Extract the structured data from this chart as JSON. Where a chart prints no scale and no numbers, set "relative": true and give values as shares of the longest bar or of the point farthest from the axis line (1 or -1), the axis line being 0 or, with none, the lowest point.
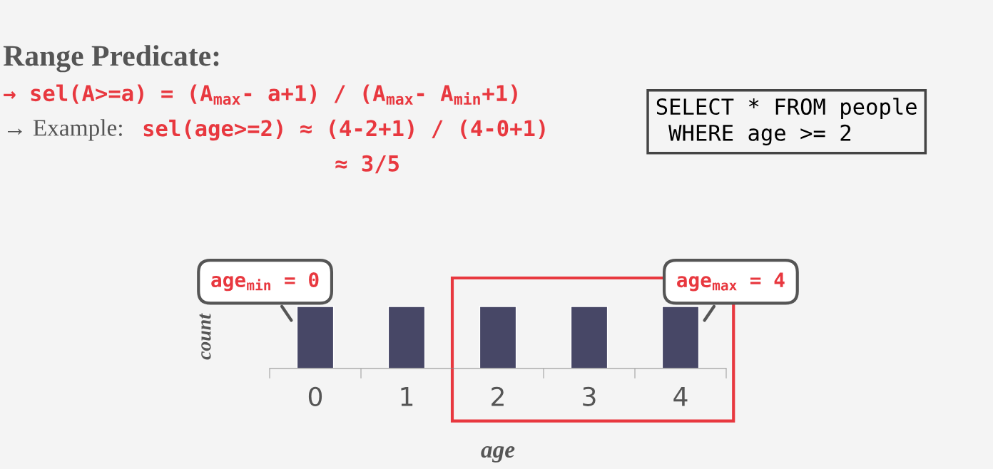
{
  "chart_data": {
    "type": "bar",
    "title": "Range Predicate:",
    "xlabel": "age",
    "ylabel": "count",
    "categories": [
      "0",
      "1",
      "2",
      "3",
      "4"
    ],
    "values": [
      1,
      1,
      1,
      1,
      1
    ],
    "color": "#474766",
    "relative": true,
    "grid": false,
    "legend": false,
    "annotations": [
      "→ sel(A>=a) = (A$_{max}$- a+1) / (A$_{max}$- A$_{min}$+1)",
      "→ Example:",
      "sel(age>=2) ≈ (4-2+1) / (4-0+1)",
      "≈ 3/5",
      "SELECT * FROM people\n WHERE age >= 2",
      {
        "text": "age$_{min}$ = 0",
        "x": "0",
        "y": 1
      },
      {
        "text": "age$_{max}$ = 4",
        "x": "4",
        "y": 1
      }
    ]
  }
}
